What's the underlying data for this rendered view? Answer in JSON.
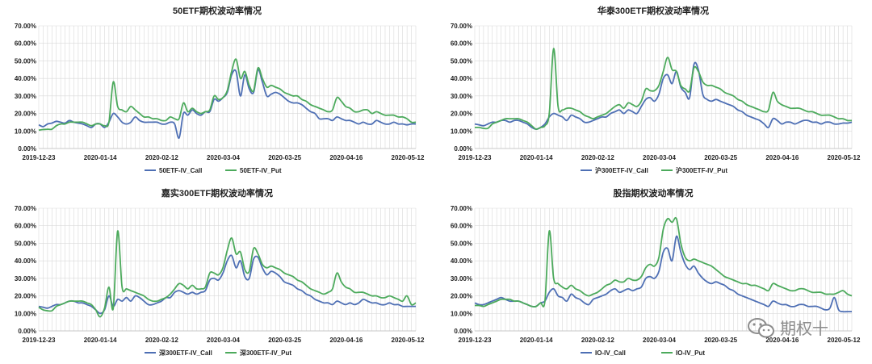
{
  "colors": {
    "call": "#4e6fb4",
    "put": "#4caa5c"
  },
  "watermark": {
    "text": "期权十"
  },
  "chart_data": [
    {
      "type": "line",
      "title": "50ETF期权波动率情况",
      "x_ticks": [
        "2019-12-23",
        "2020-01-14",
        "2020-02-12",
        "2020-03-04",
        "2020-03-25",
        "2020-04-16",
        "2020-05-12"
      ],
      "y_ticks": [
        "0.00%",
        "10.00%",
        "20.00%",
        "30.00%",
        "40.00%",
        "50.00%",
        "60.00%",
        "70.00%"
      ],
      "ylim": [
        0,
        70
      ],
      "series": [
        {
          "name": "50ETF-IV_Call",
          "color": "call",
          "values": [
            13.5,
            12.5,
            14,
            14.5,
            15.5,
            15,
            14.5,
            16,
            15,
            14.5,
            14,
            13,
            12,
            14,
            14,
            12,
            15,
            20,
            18,
            15,
            14,
            15,
            18,
            16,
            15,
            15,
            15,
            15,
            14,
            14,
            15,
            14,
            6,
            20,
            19,
            22,
            20,
            19,
            21,
            21,
            28,
            27,
            29,
            32,
            42,
            44,
            30,
            42,
            34,
            32,
            45,
            38,
            30,
            31,
            32,
            31,
            29,
            27,
            26,
            26,
            25,
            23,
            21,
            20,
            17,
            17,
            17,
            16,
            18,
            17,
            16,
            16,
            15,
            14,
            15,
            14,
            14,
            16,
            15,
            14,
            14,
            15,
            14,
            14,
            13.5,
            14,
            14
          ]
        },
        {
          "name": "50ETF-IV_Put",
          "color": "put",
          "values": [
            10.5,
            10.8,
            11,
            11,
            13,
            14,
            14,
            15,
            15,
            15,
            15,
            14,
            13,
            14,
            14,
            13,
            15,
            38,
            24,
            22,
            21,
            24,
            22,
            20,
            18,
            18,
            17,
            17,
            16,
            16,
            18,
            17,
            17,
            26,
            21,
            23,
            21,
            20,
            21,
            22,
            30,
            28,
            29,
            33,
            44,
            51,
            40,
            44,
            36,
            33,
            46,
            40,
            35,
            36,
            35,
            34,
            32,
            31,
            30,
            30,
            28,
            27,
            25,
            24,
            23,
            22,
            21,
            22,
            29,
            27,
            24,
            23,
            21,
            21,
            22,
            22,
            20,
            21,
            20,
            19,
            19,
            19,
            18,
            18,
            17,
            15,
            15
          ]
        }
      ]
    },
    {
      "type": "line",
      "title": "华泰300ETF期权波动率情况",
      "x_ticks": [
        "2019-12-23",
        "2020-01-14",
        "2020-02-12",
        "2020-03-04",
        "2020-03-25",
        "2020-04-16",
        "2020-05-12"
      ],
      "y_ticks": [
        "0.00%",
        "10.00%",
        "20.00%",
        "30.00%",
        "40.00%",
        "50.00%",
        "60.00%",
        "70.00%"
      ],
      "ylim": [
        0,
        70
      ],
      "series": [
        {
          "name": "沪300ETF-IV_Call",
          "color": "call",
          "values": [
            14,
            13.5,
            13,
            14,
            15,
            15,
            16,
            16,
            15,
            16,
            16,
            15,
            14,
            12,
            11,
            12,
            14,
            18,
            20,
            19,
            18,
            16,
            19,
            18,
            17,
            15,
            15,
            16,
            17,
            18,
            18,
            20,
            21,
            22,
            20,
            22,
            21,
            20,
            24,
            28,
            29,
            27,
            31,
            40,
            42,
            37,
            44,
            35,
            32,
            29,
            48,
            45,
            31,
            28,
            27,
            28,
            27,
            26,
            25,
            24,
            22,
            21,
            19,
            18,
            17,
            16,
            14,
            12,
            17,
            16,
            14,
            15,
            15,
            14,
            15,
            16,
            16,
            15,
            15,
            14,
            15,
            15,
            14,
            14,
            14.5,
            14.5,
            15
          ]
        },
        {
          "name": "沪300ETF-IV_Put",
          "color": "put",
          "values": [
            12,
            12,
            11.5,
            11.5,
            14,
            15,
            16,
            17,
            17,
            17,
            17,
            16,
            15,
            13,
            11,
            12,
            13,
            20,
            57,
            24,
            22,
            23,
            23,
            22,
            21,
            19,
            18,
            17,
            18,
            19,
            20,
            22,
            24,
            25,
            23,
            26,
            25,
            24,
            27,
            34,
            33,
            33,
            36,
            44,
            52,
            45,
            44,
            36,
            34,
            33,
            46,
            44,
            38,
            36,
            36,
            35,
            34,
            32,
            31,
            30,
            28,
            27,
            25,
            24,
            23,
            22,
            21,
            22,
            32,
            27,
            25,
            24,
            23,
            23,
            23,
            22,
            21,
            21,
            20,
            19,
            19,
            19,
            18,
            17,
            17,
            16,
            16
          ]
        }
      ]
    },
    {
      "type": "line",
      "title": "嘉实300ETF期权波动率情况",
      "x_ticks": [
        "2019-12-23",
        "2020-01-14",
        "2020-02-12",
        "2020-03-04",
        "2020-03-25",
        "2020-04-16",
        "2020-05-12"
      ],
      "y_ticks": [
        "0.00%",
        "10.00%",
        "20.00%",
        "30.00%",
        "40.00%",
        "50.00%",
        "60.00%",
        "70.00%"
      ],
      "ylim": [
        0,
        70
      ],
      "series": [
        {
          "name": "深300ETF-IV_Call",
          "color": "call",
          "values": [
            14,
            13.5,
            13,
            14,
            15,
            15,
            16,
            17,
            17,
            16,
            16,
            15,
            14,
            12,
            10,
            12,
            20,
            14,
            18,
            17,
            19,
            17,
            20,
            19,
            17,
            15,
            15,
            16,
            17,
            19,
            19,
            22,
            23,
            22,
            21,
            22,
            21,
            22,
            23,
            29,
            30,
            29,
            33,
            40,
            43,
            36,
            40,
            31,
            30,
            41,
            42,
            36,
            32,
            34,
            33,
            31,
            28,
            27,
            26,
            24,
            23,
            21,
            20,
            18,
            17,
            16,
            16,
            15,
            17,
            16,
            15,
            16,
            15,
            16,
            18,
            17,
            16,
            16,
            15,
            15,
            16,
            15,
            15,
            14,
            14,
            14,
            14
          ]
        },
        {
          "name": "深300ETF-IV_Put",
          "color": "put",
          "values": [
            13.5,
            12,
            11.5,
            11.5,
            14,
            15,
            16,
            17,
            17,
            17,
            17,
            16,
            15,
            12,
            8,
            13,
            25,
            13,
            57,
            25,
            24,
            23,
            22,
            21,
            20,
            18,
            17,
            17,
            18,
            19,
            21,
            24,
            27,
            26,
            24,
            26,
            24,
            24,
            25,
            33,
            33,
            32,
            36,
            46,
            53,
            44,
            45,
            35,
            34,
            47,
            44,
            38,
            36,
            37,
            36,
            35,
            33,
            32,
            31,
            29,
            28,
            26,
            24,
            23,
            22,
            21,
            22,
            24,
            33,
            28,
            25,
            24,
            22,
            22,
            22,
            21,
            20,
            20,
            19,
            19,
            20,
            19,
            18,
            17,
            20,
            15,
            16
          ]
        }
      ]
    },
    {
      "type": "line",
      "title": "股指期权波动率情况",
      "x_ticks": [
        "2019-12-23",
        "2020-01-14",
        "2020-02-12",
        "2020-03-04",
        "2020-03-25",
        "2020-04-16",
        "2020-05-12"
      ],
      "y_ticks": [
        "0.00%",
        "10.00%",
        "20.00%",
        "30.00%",
        "40.00%",
        "50.00%",
        "60.00%",
        "70.00%"
      ],
      "ylim": [
        0,
        70
      ],
      "series": [
        {
          "name": "IO-IV_Call",
          "color": "call",
          "values": [
            16,
            15,
            15,
            16,
            17,
            18,
            19,
            18,
            17,
            17,
            17,
            16,
            15,
            14,
            14,
            16,
            17,
            22,
            24,
            20,
            19,
            17,
            21,
            19,
            18,
            16,
            15,
            18,
            19,
            20,
            21,
            23,
            24,
            22,
            23,
            24,
            23,
            24,
            25,
            30,
            31,
            30,
            34,
            45,
            47,
            40,
            54,
            45,
            38,
            35,
            37,
            33,
            30,
            28,
            27,
            28,
            27,
            26,
            24,
            23,
            21,
            20,
            19,
            18,
            17,
            16,
            15,
            14,
            17,
            16,
            15,
            15,
            14,
            14,
            15,
            15,
            14,
            14,
            14,
            13,
            12,
            13,
            19,
            12,
            11,
            11,
            11
          ]
        },
        {
          "name": "IO-IV_Put",
          "color": "put",
          "values": [
            14.5,
            14.5,
            14,
            15,
            16,
            17,
            18,
            18,
            18,
            17,
            17,
            16,
            15,
            14,
            14,
            16,
            17,
            57,
            30,
            27,
            25,
            24,
            26,
            24,
            23,
            21,
            20,
            21,
            22,
            24,
            26,
            27,
            29,
            28,
            28,
            30,
            29,
            29,
            31,
            36,
            38,
            37,
            42,
            58,
            64,
            62,
            64,
            50,
            42,
            40,
            41,
            40,
            39,
            38,
            37,
            35,
            33,
            31,
            30,
            29,
            28,
            27,
            27,
            26,
            26,
            25,
            24,
            23,
            27,
            26,
            25,
            24,
            23,
            23,
            24,
            24,
            23,
            22,
            22,
            22,
            21,
            21,
            21,
            22,
            23,
            21,
            20
          ]
        }
      ]
    }
  ]
}
